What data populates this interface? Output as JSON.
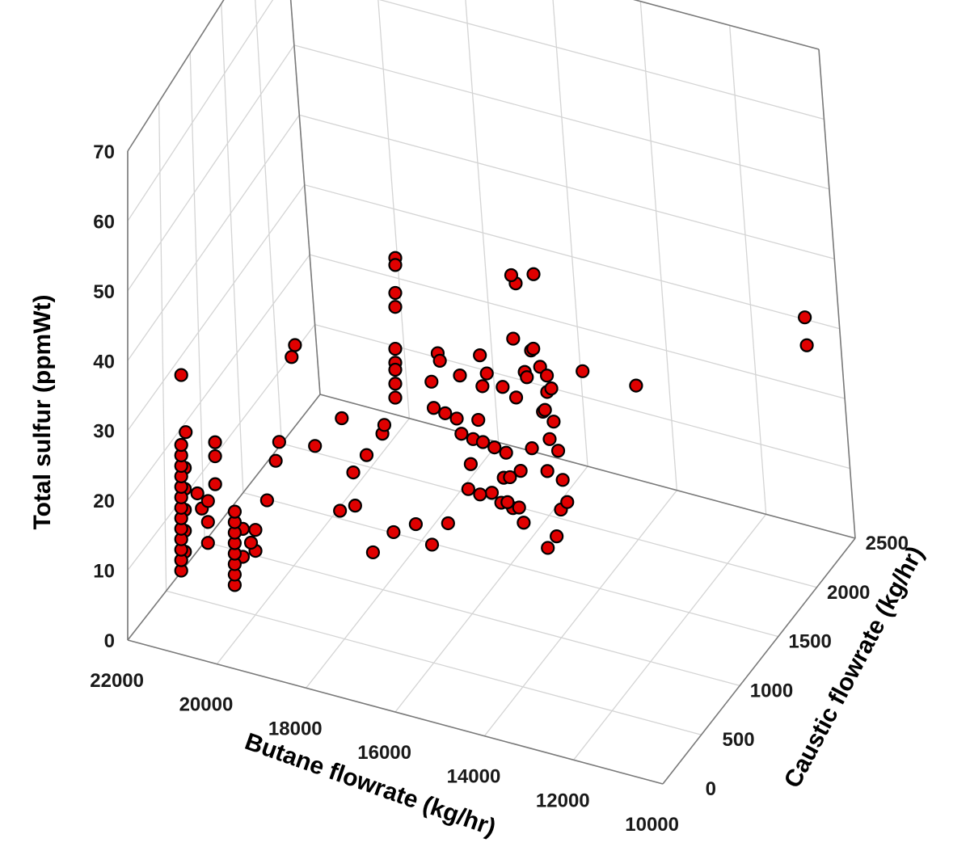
{
  "chart_data": {
    "type": "scatter3d",
    "title": "",
    "xlabel": "Butane flowrate (kg/hr)",
    "ylabel": "Caustic flowrate (kg/hr)",
    "zlabel": "Total sulfur (ppmWt)",
    "xlim": [
      10000,
      22000
    ],
    "ylim": [
      0,
      2500
    ],
    "zlim": [
      0,
      70
    ],
    "x_ticks": [
      "22000",
      "20000",
      "18000",
      "16000",
      "14000",
      "12000",
      "10000"
    ],
    "y_ticks": [
      "0",
      "500",
      "1000",
      "1500",
      "2000",
      "2500"
    ],
    "z_ticks": [
      "0",
      "10",
      "20",
      "30",
      "40",
      "50",
      "60",
      "70"
    ],
    "grid": true,
    "marker_color": "#e00000",
    "marker_edge_color": "#000000",
    "series": [
      {
        "points": [
          [
            20800,
            0,
            12
          ],
          [
            20800,
            0,
            13.5
          ],
          [
            20800,
            0,
            15
          ],
          [
            20800,
            0,
            16.5
          ],
          [
            20800,
            0,
            18
          ],
          [
            20800,
            0,
            19.5
          ],
          [
            20800,
            0,
            21
          ],
          [
            20800,
            0,
            22.5
          ],
          [
            20800,
            0,
            24
          ],
          [
            20800,
            0,
            25.5
          ],
          [
            20800,
            0,
            27
          ],
          [
            20800,
            0,
            28.5
          ],
          [
            20800,
            0,
            30
          ],
          [
            20800,
            50,
            14
          ],
          [
            20800,
            50,
            17
          ],
          [
            20800,
            50,
            20
          ],
          [
            20800,
            50,
            23
          ],
          [
            20800,
            50,
            26
          ],
          [
            20600,
            100,
            22
          ],
          [
            20500,
            100,
            20
          ],
          [
            19600,
            0,
            12
          ],
          [
            19600,
            0,
            13.5
          ],
          [
            19600,
            0,
            15
          ],
          [
            19600,
            0,
            16.5
          ],
          [
            19600,
            0,
            18
          ],
          [
            19600,
            0,
            19.5
          ],
          [
            19600,
            0,
            21
          ],
          [
            19600,
            0,
            22.5
          ],
          [
            19550,
            80,
            15
          ],
          [
            19550,
            80,
            19
          ],
          [
            19400,
            100,
            17
          ],
          [
            19300,
            100,
            16
          ],
          [
            19300,
            100,
            19
          ],
          [
            20200,
            0,
            17
          ],
          [
            20200,
            0,
            20
          ],
          [
            20200,
            0,
            23
          ],
          [
            20200,
            100,
            24
          ],
          [
            20200,
            100,
            28
          ],
          [
            20200,
            100,
            30
          ],
          [
            19200,
            200,
            22
          ],
          [
            19000,
            200,
            28
          ],
          [
            19000,
            250,
            30
          ],
          [
            20800,
            0,
            40
          ],
          [
            20700,
            0,
            32
          ],
          [
            18400,
            50,
            46
          ],
          [
            18400,
            100,
            47
          ],
          [
            16000,
            0,
            65
          ],
          [
            16000,
            0,
            64
          ],
          [
            16000,
            0,
            60
          ],
          [
            16000,
            0,
            58
          ],
          [
            16000,
            0,
            52
          ],
          [
            16000,
            0,
            50
          ],
          [
            16000,
            0,
            49
          ],
          [
            16000,
            0,
            47
          ],
          [
            16000,
            0,
            45
          ],
          [
            15500,
            300,
            48
          ],
          [
            15800,
            400,
            42
          ],
          [
            15600,
            300,
            40
          ],
          [
            15500,
            400,
            38
          ],
          [
            15400,
            500,
            36
          ],
          [
            15300,
            500,
            34
          ],
          [
            15200,
            600,
            32
          ],
          [
            15100,
            500,
            30
          ],
          [
            15000,
            400,
            28
          ],
          [
            14900,
            500,
            26
          ],
          [
            14800,
            600,
            25
          ],
          [
            15500,
            200,
            22
          ],
          [
            15300,
            300,
            24
          ],
          [
            15700,
            100,
            26
          ],
          [
            16200,
            100,
            24
          ],
          [
            16500,
            0,
            22
          ],
          [
            16900,
            0,
            28
          ],
          [
            17100,
            100,
            31
          ],
          [
            17400,
            100,
            25
          ],
          [
            17800,
            0,
            35
          ],
          [
            17200,
            0,
            40
          ],
          [
            16400,
            100,
            39
          ],
          [
            16600,
            200,
            36
          ],
          [
            16800,
            100,
            34
          ],
          [
            14600,
            300,
            40
          ],
          [
            14500,
            300,
            37
          ],
          [
            14400,
            400,
            35
          ],
          [
            14300,
            500,
            33
          ],
          [
            14200,
            400,
            31
          ],
          [
            14100,
            300,
            29
          ],
          [
            14000,
            400,
            27
          ],
          [
            13900,
            300,
            33
          ],
          [
            13800,
            200,
            31
          ],
          [
            13700,
            300,
            29
          ],
          [
            13600,
            300,
            27
          ],
          [
            13500,
            200,
            36
          ],
          [
            13400,
            300,
            38
          ],
          [
            13300,
            400,
            42
          ],
          [
            13200,
            400,
            45
          ],
          [
            13100,
            300,
            44
          ],
          [
            13000,
            300,
            40
          ],
          [
            12900,
            200,
            37
          ],
          [
            14500,
            300,
            45
          ],
          [
            14400,
            300,
            47
          ],
          [
            14200,
            400,
            44
          ],
          [
            13900,
            400,
            43
          ],
          [
            13700,
            400,
            47
          ],
          [
            13500,
            300,
            48
          ],
          [
            13200,
            300,
            50
          ],
          [
            12800,
            200,
            49
          ],
          [
            12600,
            100,
            46
          ],
          [
            12500,
            100,
            42
          ],
          [
            12400,
            100,
            38
          ],
          [
            12300,
            100,
            35
          ],
          [
            12600,
            200,
            32
          ],
          [
            12700,
            200,
            28
          ],
          [
            12900,
            200,
            26
          ],
          [
            15000,
            0,
            52
          ],
          [
            14700,
            100,
            49
          ],
          [
            14400,
            200,
            51
          ],
          [
            13800,
            300,
            53
          ],
          [
            13400,
            300,
            52
          ],
          [
            13200,
            200,
            54
          ],
          [
            12600,
            0,
            54
          ],
          [
            13300,
            0,
            66
          ],
          [
            13400,
            0,
            67
          ],
          [
            12900,
            0,
            68
          ],
          [
            11800,
            0,
            56
          ],
          [
            10600,
            0,
            56
          ],
          [
            10600,
            2400,
            32
          ],
          [
            10600,
            2400,
            28
          ]
        ]
      }
    ]
  }
}
